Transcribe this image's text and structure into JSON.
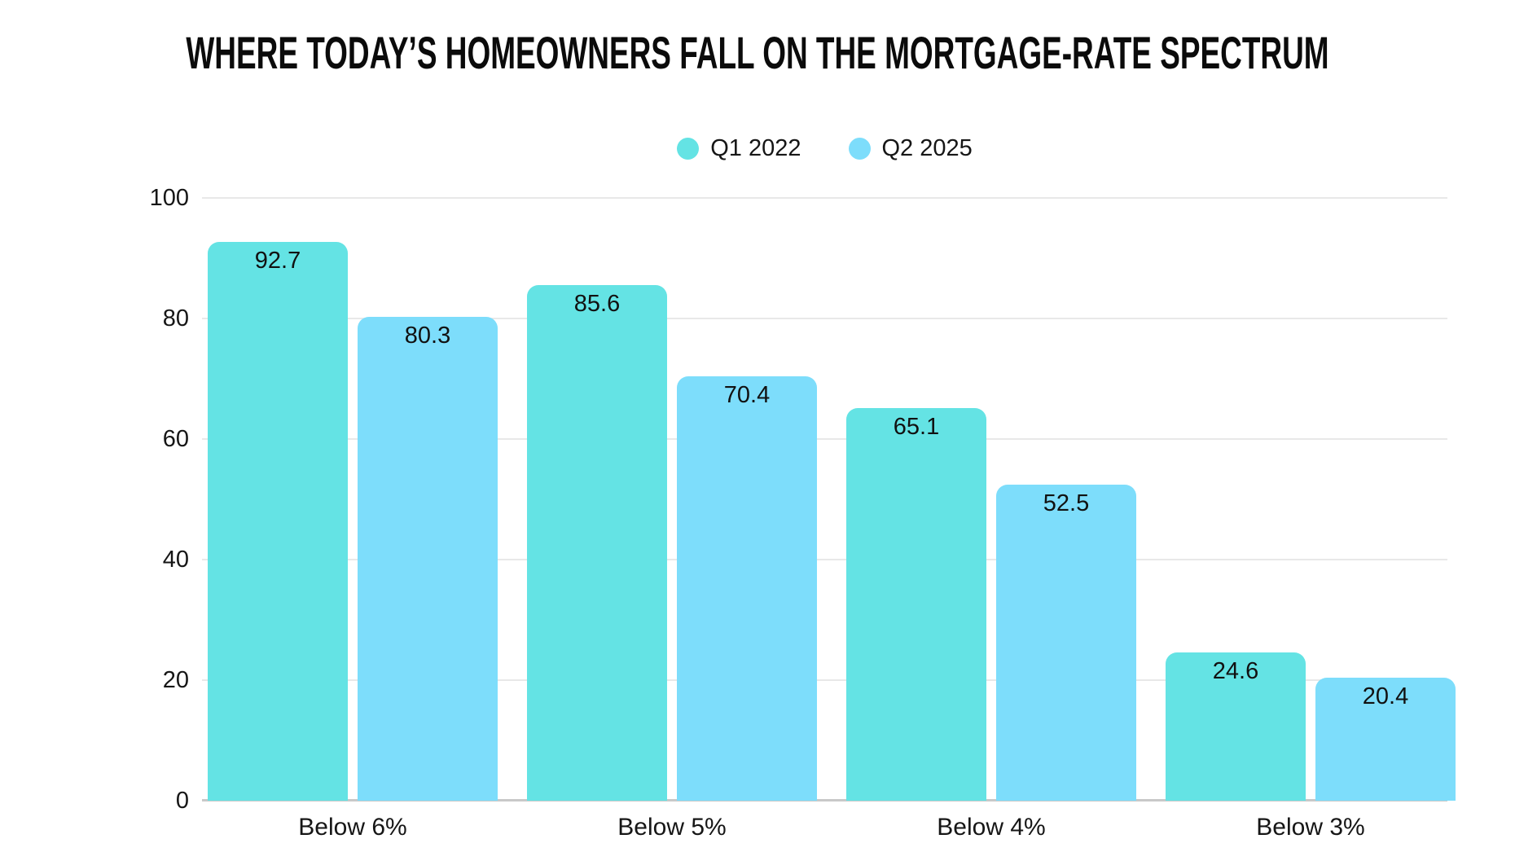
{
  "title": "WHERE TODAY’S HOMEOWNERS FALL ON THE MORTGAGE-RATE SPECTRUM",
  "colors": {
    "series_q1_2022": "#64E3E4",
    "series_q2_2025": "#7DDDFB",
    "gridline": "#e8e8e8",
    "axis_line": "#c9c9c9",
    "text": "#161616",
    "title_text": "#0b0b0b",
    "background": "#ffffff"
  },
  "legend": {
    "position": "top-center",
    "items": [
      {
        "label": "Q1 2022",
        "color": "#64E3E4"
      },
      {
        "label": "Q2 2025",
        "color": "#7DDDFB"
      }
    ]
  },
  "chart_data": {
    "type": "bar",
    "title": "WHERE TODAY’S HOMEOWNERS FALL ON THE MORTGAGE-RATE SPECTRUM",
    "categories": [
      "Below 6%",
      "Below 5%",
      "Below 4%",
      "Below 3%"
    ],
    "series": [
      {
        "name": "Q1 2022",
        "color": "#64E3E4",
        "values": [
          92.7,
          85.6,
          65.1,
          24.6
        ]
      },
      {
        "name": "Q2 2025",
        "color": "#7DDDFB",
        "values": [
          80.3,
          70.4,
          52.5,
          20.4
        ]
      }
    ],
    "xlabel": "",
    "ylabel": "",
    "ylim": [
      0,
      100
    ],
    "yticks": [
      0,
      20,
      40,
      60,
      80,
      100
    ],
    "grid": true,
    "legend_position": "top-center",
    "value_labels": "inside-top",
    "bar_corner": "rounded-top"
  }
}
